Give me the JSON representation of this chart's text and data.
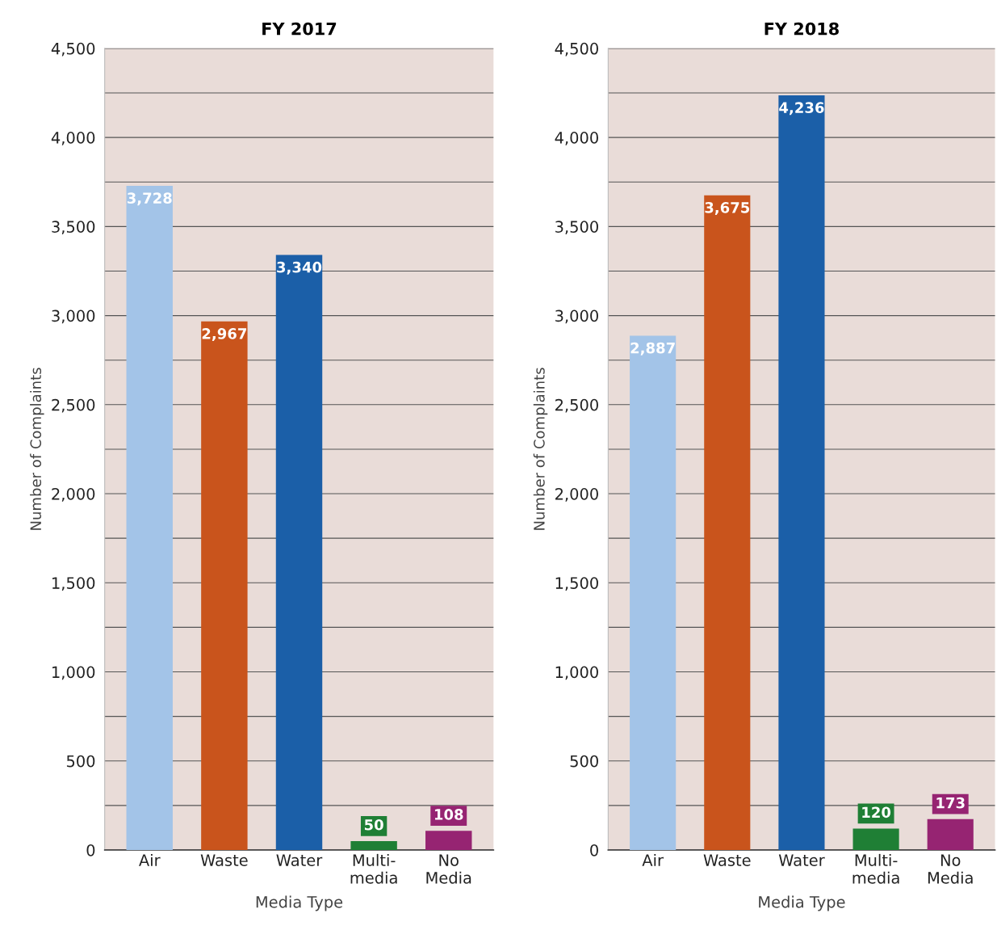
{
  "chart_data": [
    {
      "type": "bar",
      "title": "FY 2017",
      "xlabel": "Media Type",
      "ylabel": "Number of Complaints",
      "categories": [
        "Air",
        "Waste",
        "Water",
        "Multi-\nmedia",
        "No\nMedia"
      ],
      "values": [
        3728,
        2967,
        3340,
        50,
        108
      ],
      "colors": [
        "#a3c4e8",
        "#c9541c",
        "#1b5fa8",
        "#1f7f35",
        "#962472"
      ],
      "value_labels": [
        "3,728",
        "2,967",
        "3,340",
        "50",
        "108"
      ],
      "ylim": [
        0,
        4500
      ],
      "yticks": [
        {
          "value": 0,
          "label": "0"
        },
        {
          "value": 250,
          "label": null
        },
        {
          "value": 500,
          "label": "500"
        },
        {
          "value": 750,
          "label": null
        },
        {
          "value": 1000,
          "label": "1,000"
        },
        {
          "value": 1250,
          "label": null
        },
        {
          "value": 1500,
          "label": "1,500"
        },
        {
          "value": 1750,
          "label": null
        },
        {
          "value": 2000,
          "label": "2,000"
        },
        {
          "value": 2250,
          "label": null
        },
        {
          "value": 2500,
          "label": "2,500"
        },
        {
          "value": 2750,
          "label": null
        },
        {
          "value": 3000,
          "label": "3,000"
        },
        {
          "value": 3250,
          "label": null
        },
        {
          "value": 3500,
          "label": "3,500"
        },
        {
          "value": 3750,
          "label": null
        },
        {
          "value": 4000,
          "label": "4,000"
        },
        {
          "value": 4250,
          "label": null
        },
        {
          "value": 4500,
          "label": "4,500"
        }
      ],
      "grid": "y"
    },
    {
      "type": "bar",
      "title": "FY 2018",
      "xlabel": "Media Type",
      "ylabel": "Number of Complaints",
      "categories": [
        "Air",
        "Waste",
        "Water",
        "Multi-\nmedia",
        "No\nMedia"
      ],
      "values": [
        2887,
        3675,
        4236,
        120,
        173
      ],
      "colors": [
        "#a3c4e8",
        "#c9541c",
        "#1b5fa8",
        "#1f7f35",
        "#962472"
      ],
      "value_labels": [
        "2,887",
        "3,675",
        "4,236",
        "120",
        "173"
      ],
      "ylim": [
        0,
        4500
      ],
      "yticks": [
        {
          "value": 0,
          "label": "0"
        },
        {
          "value": 250,
          "label": null
        },
        {
          "value": 500,
          "label": "500"
        },
        {
          "value": 750,
          "label": null
        },
        {
          "value": 1000,
          "label": "1,000"
        },
        {
          "value": 1250,
          "label": null
        },
        {
          "value": 1500,
          "label": "1,500"
        },
        {
          "value": 1750,
          "label": null
        },
        {
          "value": 2000,
          "label": "2,000"
        },
        {
          "value": 2250,
          "label": null
        },
        {
          "value": 2500,
          "label": "2,500"
        },
        {
          "value": 2750,
          "label": null
        },
        {
          "value": 3000,
          "label": "3,000"
        },
        {
          "value": 3250,
          "label": null
        },
        {
          "value": 3500,
          "label": "3,500"
        },
        {
          "value": 3750,
          "label": null
        },
        {
          "value": 4000,
          "label": "4,000"
        },
        {
          "value": 4250,
          "label": null
        },
        {
          "value": 4500,
          "label": "4,500"
        }
      ],
      "grid": "y"
    }
  ]
}
